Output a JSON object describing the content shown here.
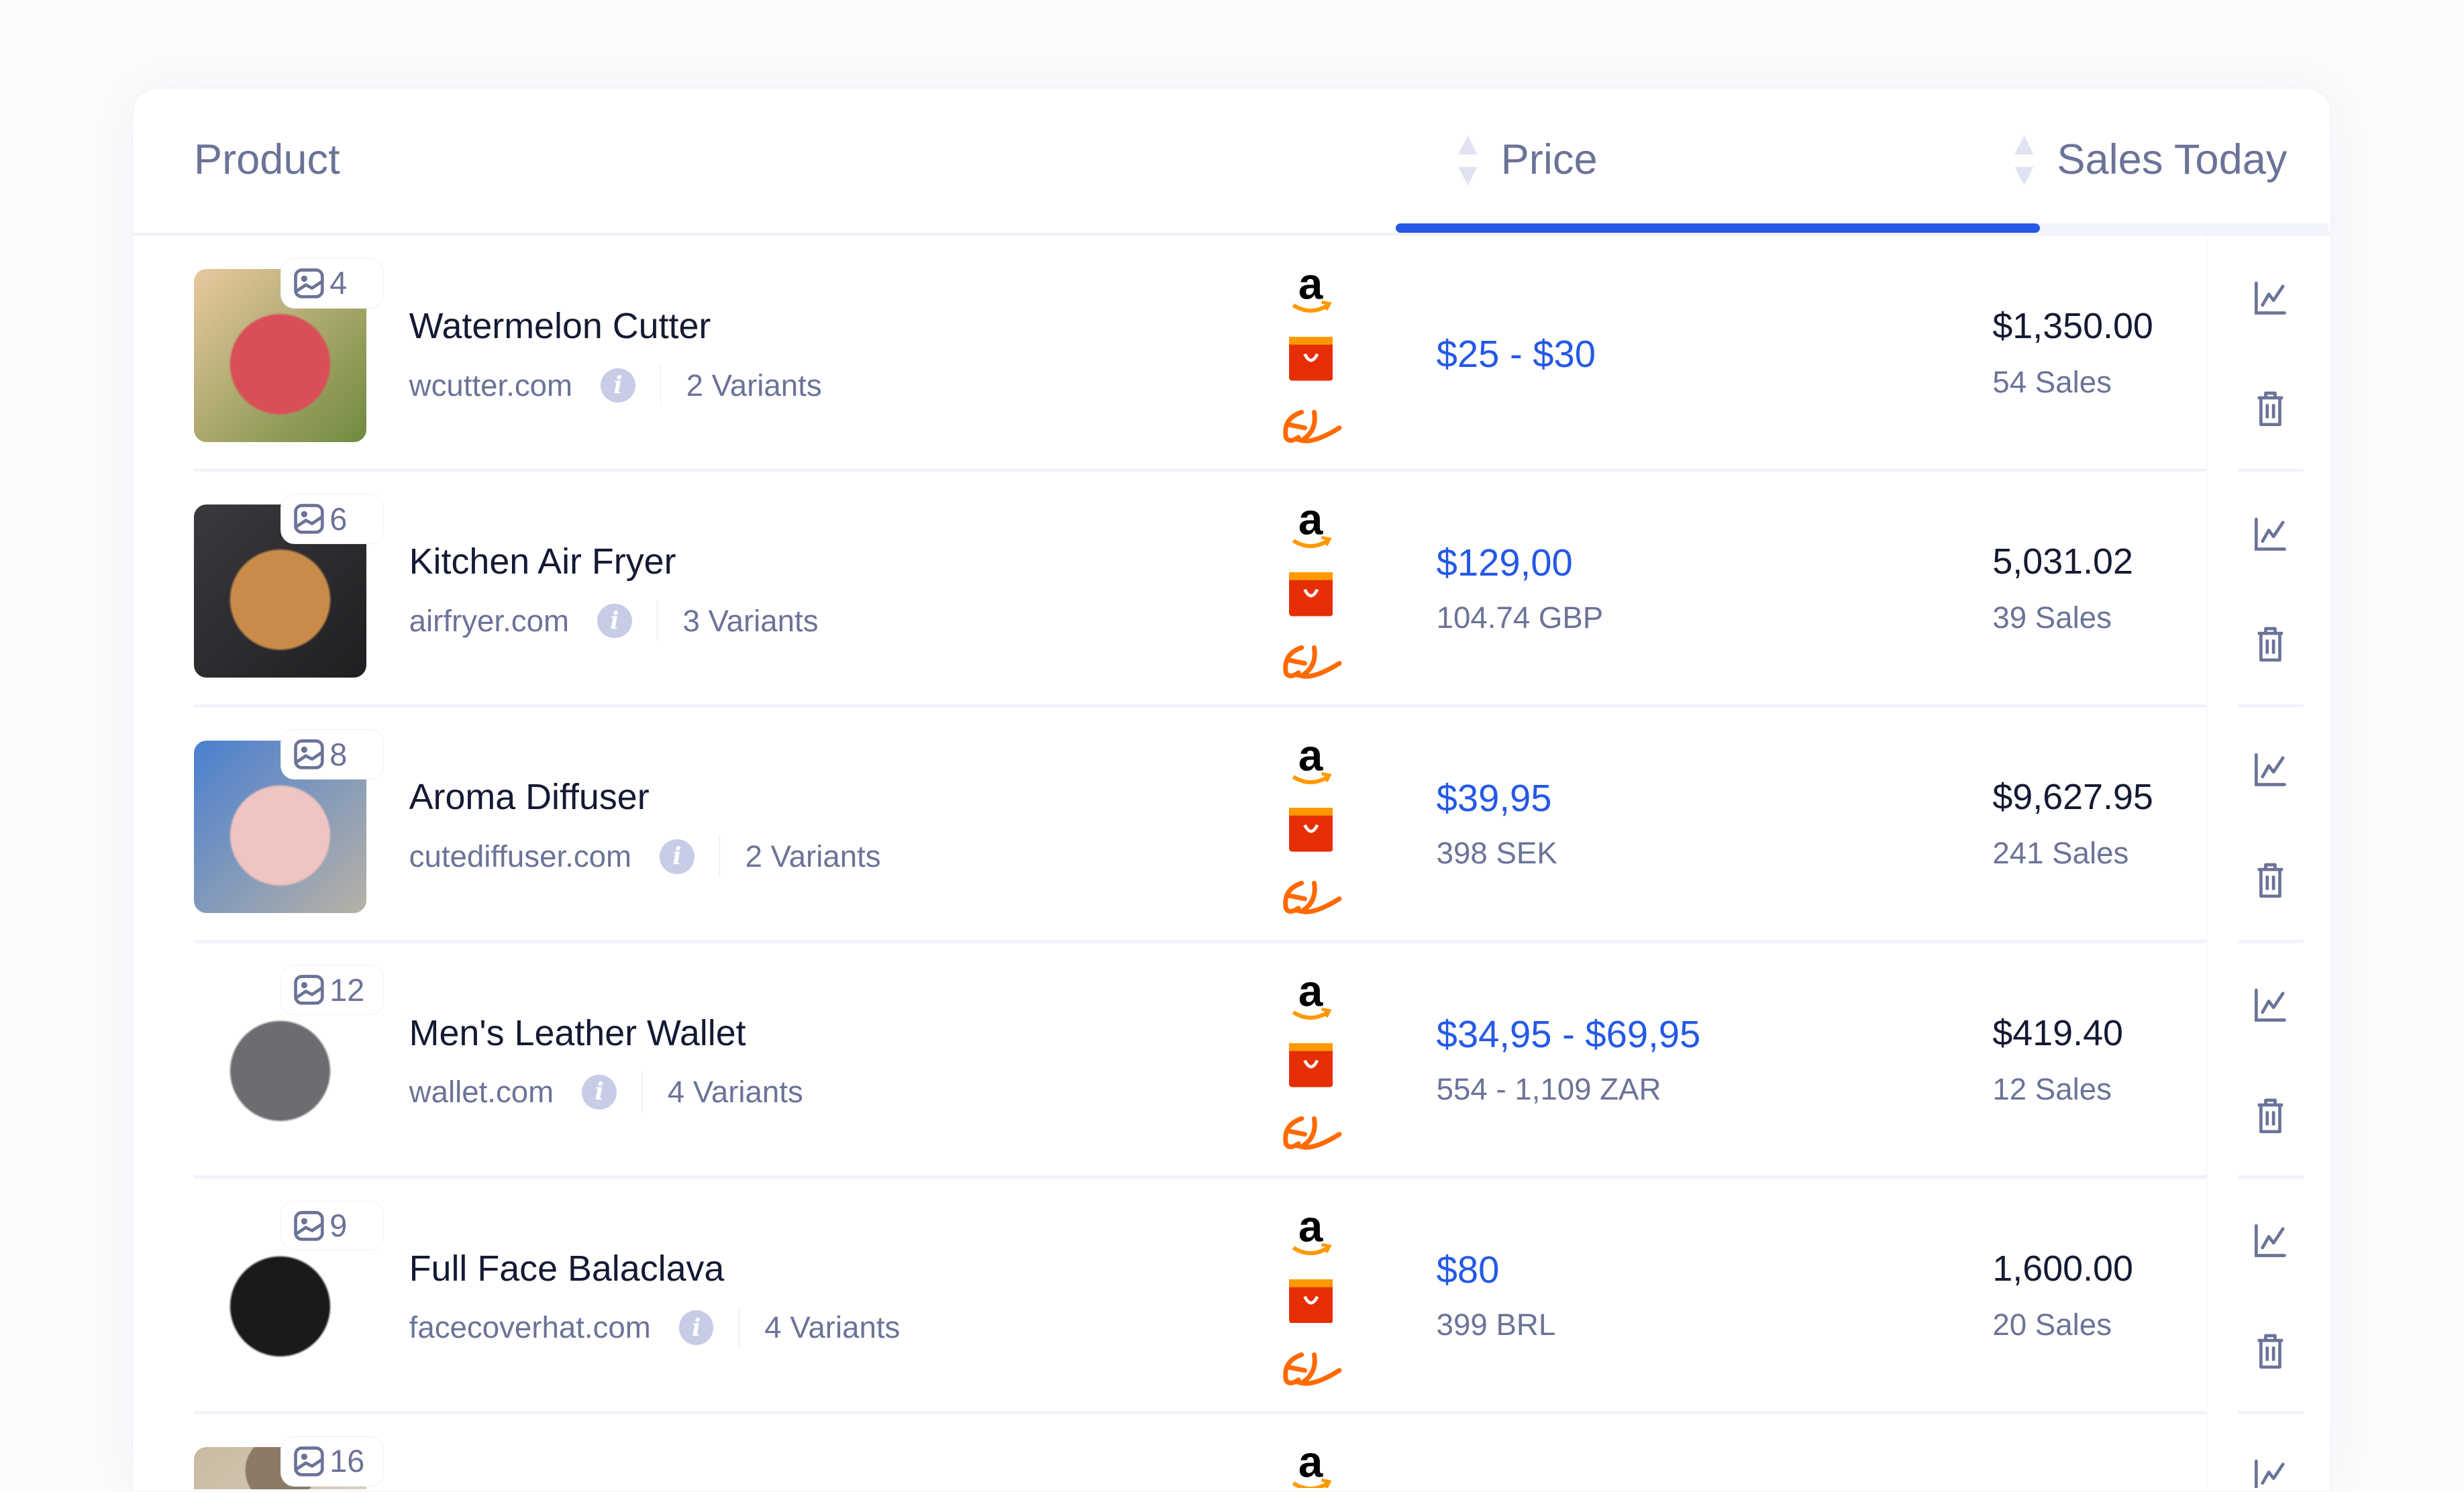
{
  "header": {
    "product": "Product",
    "price": "Price",
    "sales_today": "Sales Today",
    "active_tab": "Price"
  },
  "colors": {
    "accent": "#2559e6",
    "muted": "#6b7398",
    "text": "#141a33",
    "amazon_arrow": "#ff9900",
    "aliexpress": "#e62e04",
    "alibaba": "#ff6a00"
  },
  "marketplaces": [
    "amazon-icon",
    "aliexpress-icon",
    "alibaba-icon"
  ],
  "rows": [
    {
      "images": "4",
      "name": "Watermelon Cutter",
      "domain": "wcutter.com",
      "variants": "2 Variants",
      "price": "$25 - $30",
      "price_local": "",
      "sales_amount": "$1,350.00",
      "sales_count": "54 Sales",
      "thumb": [
        "#e9c9a0",
        "#d94f57",
        "#6f8a3e"
      ]
    },
    {
      "images": "6",
      "name": "Kitchen Air Fryer",
      "domain": "airfryer.com",
      "variants": "3 Variants",
      "price": "$129,00",
      "price_local": "104.74 GBP",
      "sales_amount": "5,031.02",
      "sales_count": "39 Sales",
      "thumb": [
        "#3a3a3e",
        "#c98a4a",
        "#1f1f22"
      ]
    },
    {
      "images": "8",
      "name": "Aroma Diffuser",
      "domain": "cutediffuser.com",
      "variants": "2 Variants",
      "price": "$39,95",
      "price_local": "398 SEK",
      "sales_amount": "$9,627.95",
      "sales_count": "241 Sales",
      "thumb": [
        "#4a7fd0",
        "#f0c4c0",
        "#b7b2a6"
      ]
    },
    {
      "images": "12",
      "name": "Men's Leather Wallet",
      "domain": "wallet.com",
      "variants": "4 Variants",
      "price": "$34,95 - $69,95",
      "price_local": "554 - 1,109 ZAR",
      "sales_amount": "$419.40",
      "sales_count": "12 Sales",
      "thumb": [
        "#ffffff",
        "#6b6d72",
        "#ffffff"
      ]
    },
    {
      "images": "9",
      "name": "Full Face Balaclava",
      "domain": "facecoverhat.com",
      "variants": "4 Variants",
      "price": "$80",
      "price_local": "399 BRL",
      "sales_amount": "1,600.00",
      "sales_count": "20 Sales",
      "thumb": [
        "#ffffff",
        "#1a1a1a",
        "#ffffff"
      ]
    },
    {
      "images": "16",
      "name": "",
      "domain": "",
      "variants": "",
      "price": "",
      "price_local": "",
      "sales_amount": "",
      "sales_count": "",
      "thumb": [
        "#c9b9a0",
        "#8a7a66",
        "#d9d0c0"
      ]
    }
  ]
}
